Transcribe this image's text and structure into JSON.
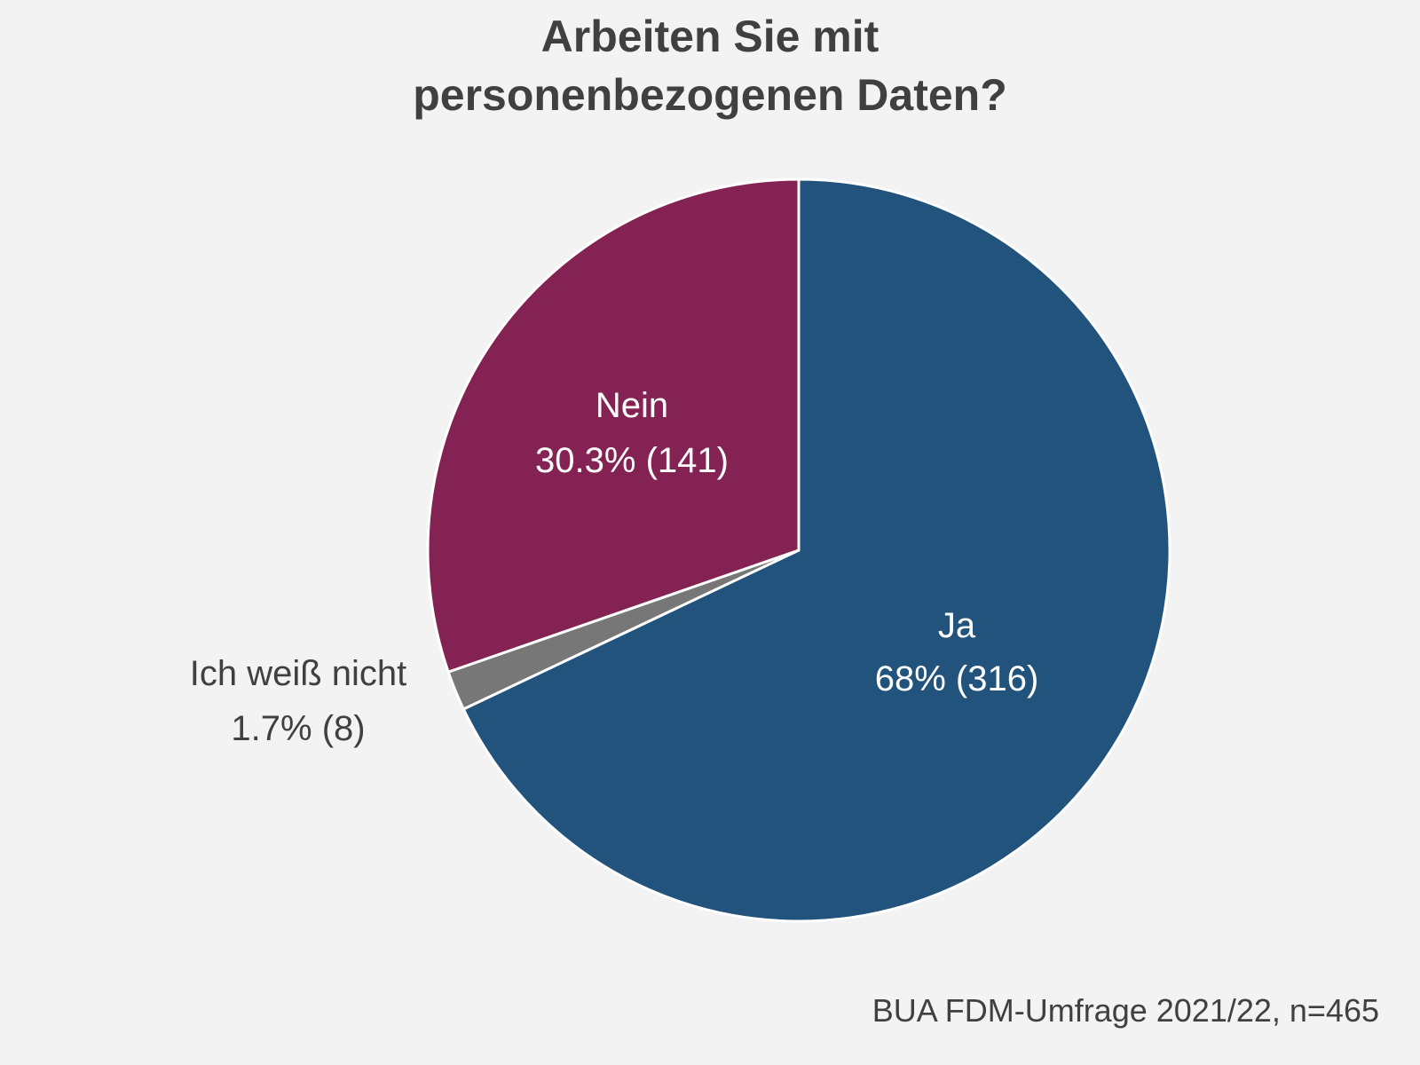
{
  "chart_data": {
    "type": "pie",
    "title": [
      "Arbeiten Sie mit",
      "personenbezogenen Daten?"
    ],
    "caption": "BUA FDM-Umfrage 2021/22, n=465",
    "slices": [
      {
        "label": "Ja",
        "percent_label": "68% (316)",
        "value": 316,
        "color": "#22537c"
      },
      {
        "label": "Ich weiß nicht",
        "percent_label": "1.7% (8)",
        "value": 8,
        "color": "#777777"
      },
      {
        "label": "Nein",
        "percent_label": "30.3% (141)",
        "value": 141,
        "color": "#842353"
      }
    ],
    "start": "top",
    "direction": "clockwise"
  }
}
